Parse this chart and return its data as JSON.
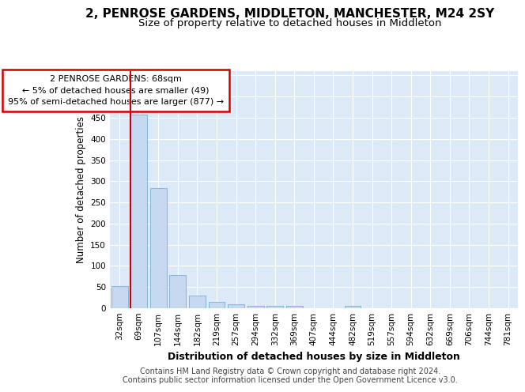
{
  "title1": "2, PENROSE GARDENS, MIDDLETON, MANCHESTER, M24 2SY",
  "title2": "Size of property relative to detached houses in Middleton",
  "xlabel": "Distribution of detached houses by size in Middleton",
  "ylabel": "Number of detached properties",
  "categories": [
    "32sqm",
    "69sqm",
    "107sqm",
    "144sqm",
    "182sqm",
    "219sqm",
    "257sqm",
    "294sqm",
    "332sqm",
    "369sqm",
    "407sqm",
    "444sqm",
    "482sqm",
    "519sqm",
    "557sqm",
    "594sqm",
    "632sqm",
    "669sqm",
    "706sqm",
    "744sqm",
    "781sqm"
  ],
  "values": [
    52,
    457,
    283,
    78,
    30,
    15,
    10,
    5,
    5,
    6,
    0,
    0,
    5,
    0,
    0,
    0,
    0,
    0,
    0,
    0,
    0
  ],
  "bar_color": "#c5d8f0",
  "bar_edge_color": "#7aafd4",
  "vline_color": "#cc0000",
  "vline_x_index": 1,
  "annotation_lines": [
    "2 PENROSE GARDENS: 68sqm",
    "← 5% of detached houses are smaller (49)",
    "95% of semi-detached houses are larger (877) →"
  ],
  "annotation_box_color": "#ffffff",
  "annotation_box_edge": "#cc0000",
  "ylim": [
    0,
    560
  ],
  "yticks": [
    0,
    50,
    100,
    150,
    200,
    250,
    300,
    350,
    400,
    450,
    500,
    550
  ],
  "fig_bg": "#ffffff",
  "plot_bg": "#dce9f7",
  "grid_color": "#ffffff",
  "footer1": "Contains HM Land Registry data © Crown copyright and database right 2024.",
  "footer2": "Contains public sector information licensed under the Open Government Licence v3.0.",
  "title1_fontsize": 11,
  "title2_fontsize": 9.5,
  "xlabel_fontsize": 9,
  "ylabel_fontsize": 8.5,
  "tick_fontsize": 7.5,
  "footer_fontsize": 7,
  "ann_fontsize": 8
}
